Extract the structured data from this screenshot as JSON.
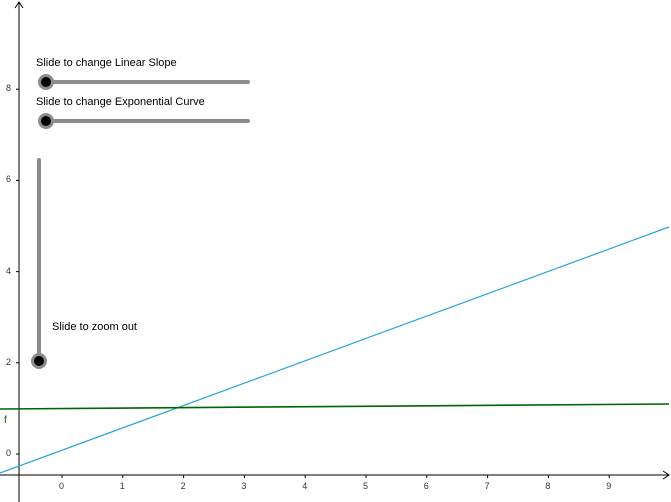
{
  "sliders": {
    "linear": {
      "label": "Slide to change Linear Slope"
    },
    "exponential": {
      "label": "Slide to change Exponential Curve"
    },
    "zoom": {
      "label": "Slide to zoom out"
    }
  },
  "axes": {
    "x_ticks": [
      "0",
      "1",
      "2",
      "3",
      "4",
      "5",
      "6",
      "7",
      "8",
      "9"
    ],
    "y_ticks": [
      "0",
      "2",
      "4",
      "6",
      "8"
    ]
  },
  "functions": {
    "f_label": "f"
  },
  "colors": {
    "linear": "#29a3d6",
    "exponential": "#006400",
    "slider_track": "#8c8c8c",
    "axis": "#000000"
  }
}
